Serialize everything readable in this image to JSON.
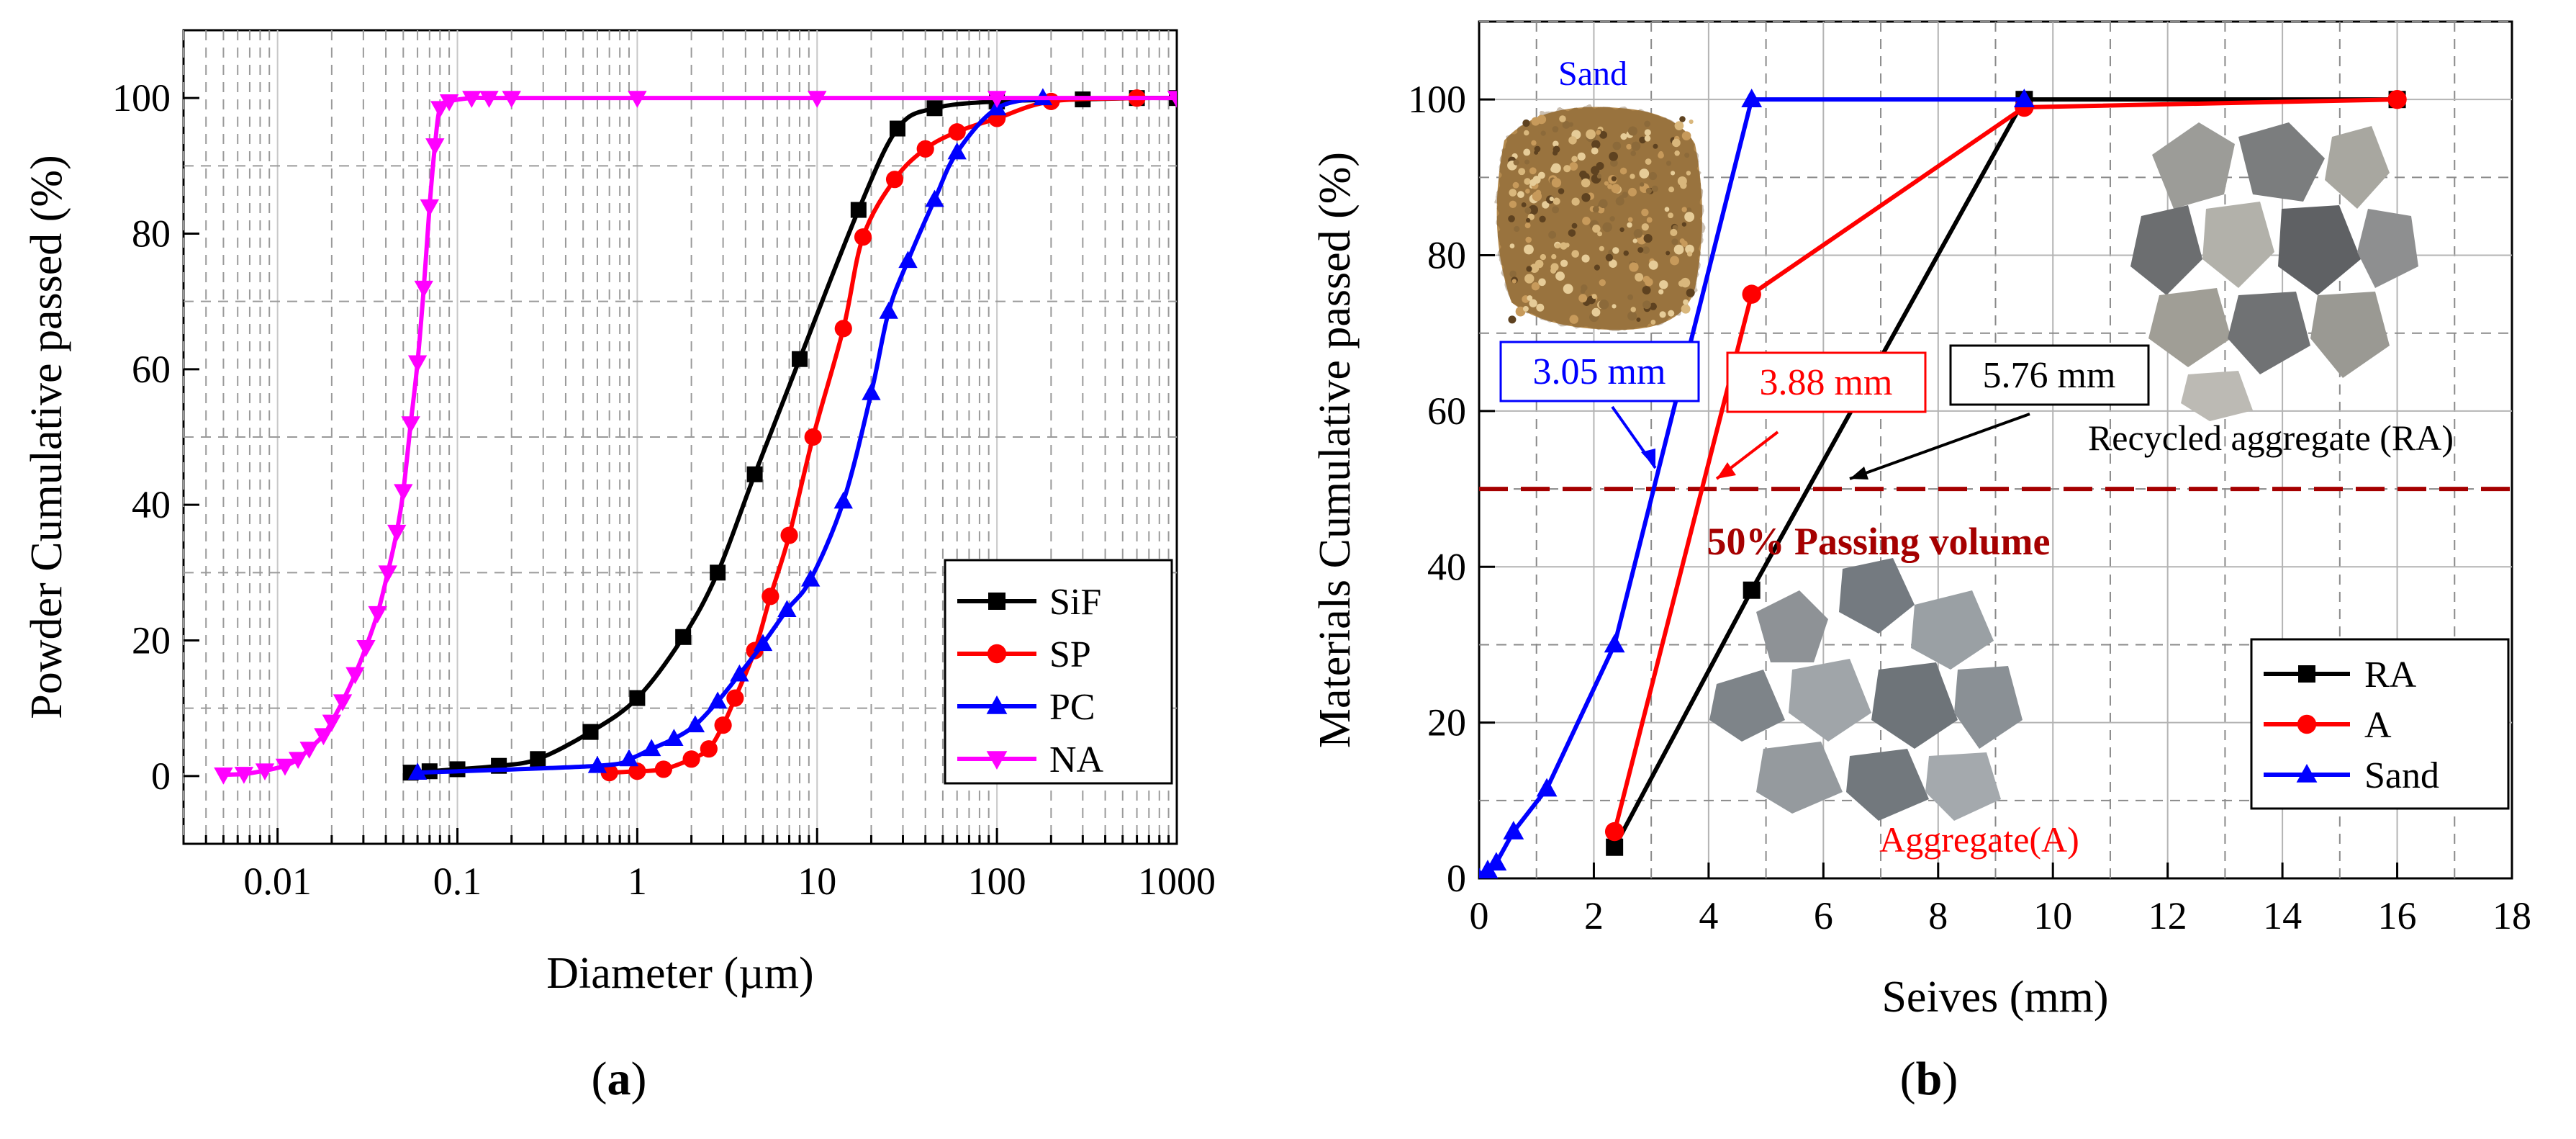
{
  "chart_data": [
    {
      "panel_label": "(a)",
      "type": "line",
      "x_scale": "log",
      "xlabel": "Diameter (µm)",
      "ylabel": "Powder Cumulative passed (%)",
      "xlim": [
        0.003,
        1000
      ],
      "ylim": [
        -10,
        110
      ],
      "x_ticks": [
        0.01,
        0.1,
        1,
        10,
        100,
        1000
      ],
      "x_tick_labels": [
        "0.01",
        "0.1",
        "1",
        "10",
        "100",
        "1000"
      ],
      "y_ticks": [
        0,
        20,
        40,
        60,
        80,
        100
      ],
      "y_tick_labels": [
        "0",
        "20",
        "40",
        "60",
        "80",
        "100"
      ],
      "legend_position": "lower-right",
      "series": [
        {
          "name": "SiF",
          "color": "#000000",
          "marker": "square",
          "x": [
            0.055,
            0.07,
            0.1,
            0.17,
            0.28,
            0.55,
            1.0,
            1.8,
            2.8,
            4.5,
            8.0,
            17.0,
            28.0,
            45.0,
            100,
            300,
            600,
            1000
          ],
          "y": [
            0.5,
            0.7,
            1.0,
            1.5,
            2.5,
            6.5,
            11.5,
            20.5,
            30.0,
            44.5,
            61.5,
            83.5,
            95.5,
            98.5,
            99.5,
            99.8,
            100,
            100
          ]
        },
        {
          "name": "SP",
          "color": "#ff0000",
          "marker": "circle",
          "x": [
            0.7,
            1.0,
            1.4,
            2.0,
            2.5,
            3.0,
            3.5,
            4.5,
            5.5,
            7.0,
            9.5,
            14.0,
            18.0,
            27.0,
            40.0,
            60.0,
            100.0,
            200,
            600
          ],
          "y": [
            0.5,
            0.7,
            1.0,
            2.5,
            4.0,
            7.5,
            11.5,
            18.5,
            26.5,
            35.5,
            50.0,
            66.0,
            79.5,
            88.0,
            92.5,
            95.0,
            97.0,
            99.5,
            100
          ]
        },
        {
          "name": "PC",
          "color": "#0000ff",
          "marker": "triangle-up",
          "x": [
            0.06,
            0.6,
            0.9,
            1.2,
            1.6,
            2.1,
            2.8,
            3.7,
            5.0,
            6.8,
            9.2,
            14.0,
            20.0,
            25.0,
            32.0,
            45.0,
            60.0,
            100.0,
            180.0
          ],
          "y": [
            0.5,
            1.5,
            2.5,
            4.0,
            5.5,
            7.5,
            11.0,
            15.0,
            19.5,
            24.5,
            29.0,
            40.5,
            56.5,
            68.5,
            76.0,
            85.0,
            92.0,
            98.5,
            100
          ]
        },
        {
          "name": "NA",
          "color": "#ff00ff",
          "marker": "triangle-down",
          "x": [
            0.005,
            0.0065,
            0.0085,
            0.011,
            0.013,
            0.015,
            0.018,
            0.02,
            0.023,
            0.027,
            0.031,
            0.036,
            0.041,
            0.046,
            0.05,
            0.055,
            0.06,
            0.065,
            0.07,
            0.075,
            0.08,
            0.09,
            0.12,
            0.15,
            0.2,
            1.0,
            10.0,
            100.0,
            1000.0
          ],
          "y": [
            0.2,
            0.3,
            0.8,
            1.5,
            2.5,
            4.0,
            6.0,
            8.0,
            11.0,
            15.0,
            19.0,
            24.0,
            30.0,
            36.0,
            42.0,
            52.0,
            61.0,
            72.0,
            84.0,
            93.0,
            98.5,
            99.5,
            100,
            100,
            100,
            100,
            100,
            100,
            100
          ]
        }
      ]
    },
    {
      "panel_label": "(b)",
      "type": "line",
      "xlabel": "Seives (mm)",
      "ylabel": "Materials Cumulative passed (%)",
      "xlim": [
        0,
        18
      ],
      "ylim": [
        0,
        110
      ],
      "x_ticks": [
        0,
        2,
        4,
        6,
        8,
        10,
        12,
        14,
        16,
        18
      ],
      "x_tick_labels": [
        "0",
        "2",
        "4",
        "6",
        "8",
        "10",
        "12",
        "14",
        "16",
        "18"
      ],
      "y_ticks": [
        0,
        20,
        40,
        60,
        80,
        100
      ],
      "y_tick_labels": [
        "0",
        "20",
        "40",
        "60",
        "80",
        "100"
      ],
      "legend_position": "lower-right",
      "series": [
        {
          "name": "RA",
          "color": "#000000",
          "marker": "square",
          "x": [
            2.36,
            4.75,
            9.5,
            16.0
          ],
          "y": [
            4,
            37,
            100,
            100
          ]
        },
        {
          "name": "A",
          "color": "#ff0000",
          "marker": "circle",
          "x": [
            2.36,
            4.75,
            9.5,
            16.0
          ],
          "y": [
            6,
            75,
            99,
            100
          ]
        },
        {
          "name": "Sand",
          "color": "#0000ff",
          "marker": "triangle-up",
          "x": [
            0,
            0.15,
            0.3,
            0.6,
            1.18,
            2.36,
            4.75,
            9.5
          ],
          "y": [
            0,
            1,
            2,
            6,
            11.5,
            30,
            100,
            100
          ]
        }
      ],
      "reference_line": {
        "y": 50,
        "color": "#a50000",
        "label": "50% Passing volume"
      },
      "annotations": [
        {
          "text": "3.05 mm",
          "color": "#0000ff",
          "points_to": [
            3.05,
            50
          ]
        },
        {
          "text": "3.88 mm",
          "color": "#ff0000",
          "points_to": [
            3.88,
            50
          ]
        },
        {
          "text": "5.76 mm",
          "color": "#000000",
          "points_to": [
            5.76,
            50
          ]
        }
      ],
      "photo_labels": {
        "sand": "Sand",
        "recycled": "Recycled aggregate (RA)",
        "aggregate": "Aggregate(A)"
      }
    }
  ]
}
